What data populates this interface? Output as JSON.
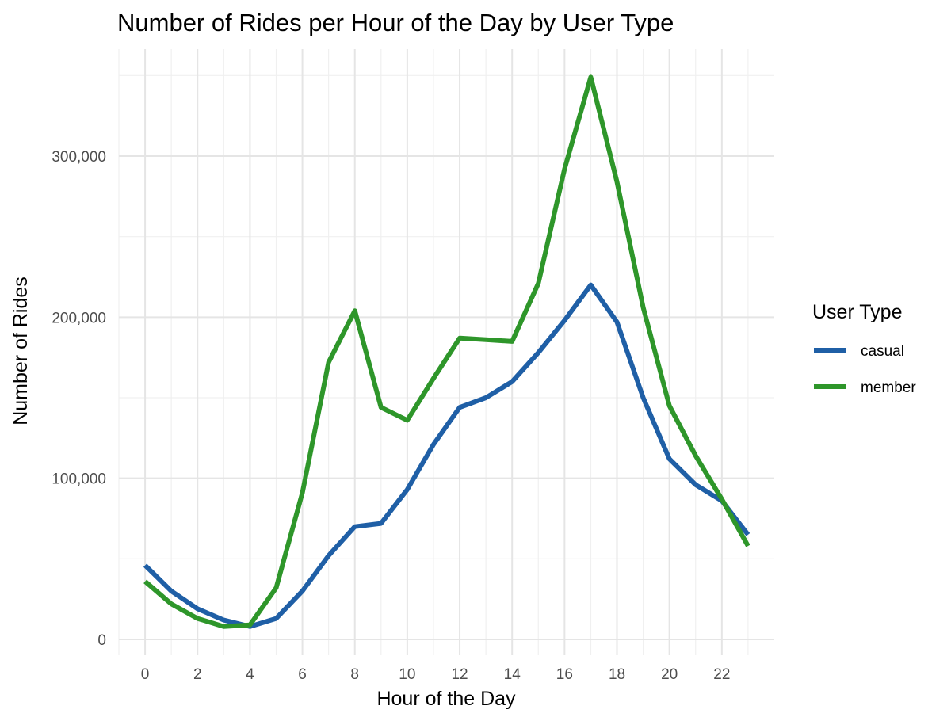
{
  "chart_data": {
    "type": "line",
    "title": "Number of Rides per Hour of the Day by User Type",
    "xlabel": "Hour of the Day",
    "ylabel": "Number of Rides",
    "x": [
      0,
      1,
      2,
      3,
      4,
      5,
      6,
      7,
      8,
      9,
      10,
      11,
      12,
      13,
      14,
      15,
      16,
      17,
      18,
      19,
      20,
      21,
      22,
      23
    ],
    "xlim": [
      -1,
      24
    ],
    "ylim": [
      0,
      350000
    ],
    "x_ticks": [
      "0",
      "2",
      "4",
      "6",
      "8",
      "10",
      "12",
      "14",
      "16",
      "18",
      "20",
      "22"
    ],
    "y_ticks": [
      "0",
      "100,000",
      "200,000",
      "300,000"
    ],
    "grid": true,
    "legend": {
      "title": "User Type",
      "placement": "right"
    },
    "series": [
      {
        "name": "casual",
        "color": "#1f5fa6",
        "values": [
          46000,
          30000,
          19000,
          12000,
          8000,
          13000,
          30000,
          52000,
          70000,
          72000,
          93000,
          121000,
          144000,
          150000,
          160000,
          178000,
          198000,
          220000,
          197000,
          150000,
          112000,
          96000,
          86000,
          65000
        ]
      },
      {
        "name": "member",
        "color": "#2e962a",
        "values": [
          36000,
          22000,
          13000,
          8000,
          9000,
          32000,
          91000,
          172000,
          204000,
          144000,
          136000,
          162000,
          187000,
          186000,
          185000,
          221000,
          292000,
          349000,
          284000,
          206000,
          145000,
          114000,
          87000,
          58000
        ]
      }
    ]
  }
}
